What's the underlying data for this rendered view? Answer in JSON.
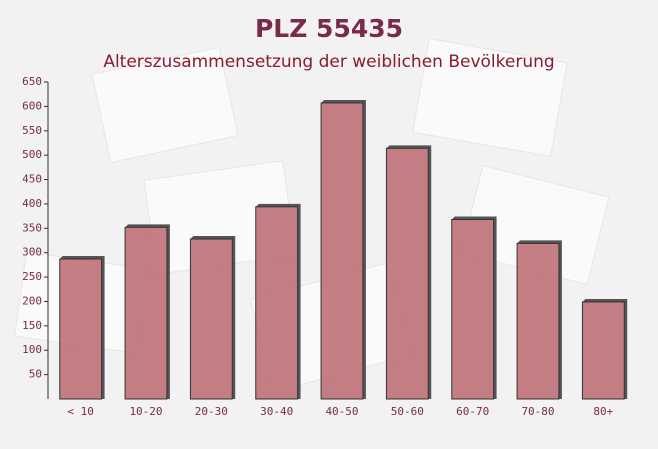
{
  "chart_data": {
    "type": "bar",
    "title": "PLZ 55435",
    "subtitle": "Alterszusammensetzung der weiblichen Bevölkerung",
    "categories": [
      "< 10",
      "10-20",
      "20-30",
      "30-40",
      "40-50",
      "50-60",
      "60-70",
      "70-80",
      "80+"
    ],
    "values": [
      287,
      352,
      328,
      394,
      607,
      514,
      368,
      319,
      199
    ],
    "color": "#c07078",
    "ylim": [
      0,
      650
    ],
    "yticks": [
      50,
      100,
      150,
      200,
      250,
      300,
      350,
      400,
      450,
      500,
      550,
      600,
      650
    ]
  }
}
